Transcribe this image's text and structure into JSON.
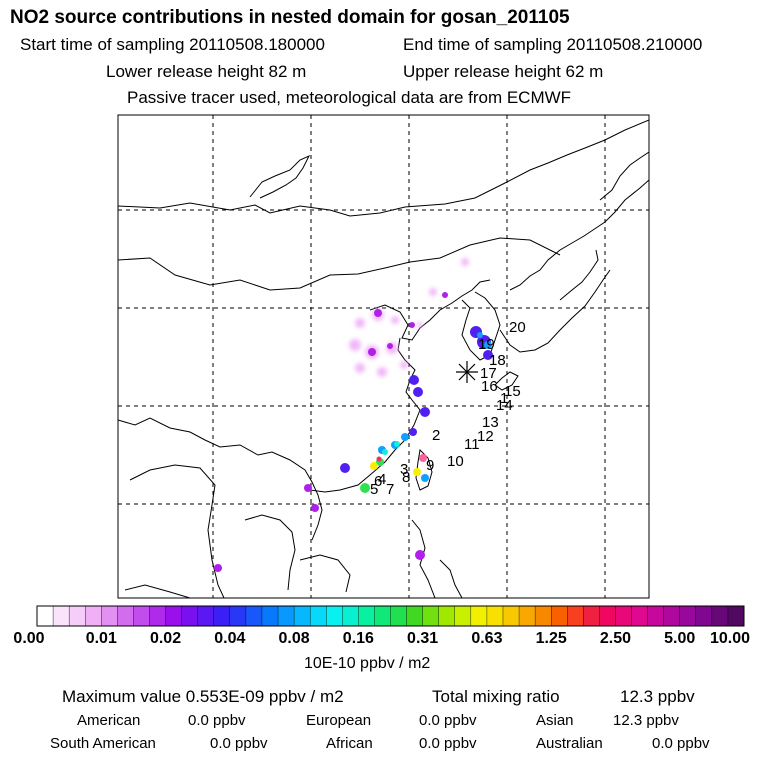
{
  "header": {
    "title": "NO2 source contributions in nested domain for gosan_201105",
    "start": "Start time of sampling 20110508.180000",
    "end": "End time of sampling 20110508.210000",
    "lower": "Lower release height   82 m",
    "upper": "Upper release height   62 m",
    "tracer": "Passive tracer used, meteorological data are from ECMWF"
  },
  "map": {
    "receptor_marker": "star-asterisk",
    "trajectory_labels": [
      "1",
      "2",
      "3",
      "4",
      "5",
      "6",
      "7",
      "8",
      "9",
      "10",
      "11",
      "12",
      "13",
      "14",
      "15",
      "16",
      "17",
      "18",
      "19",
      "20"
    ]
  },
  "colorbar": {
    "ticks": [
      "0.00",
      "0.01",
      "0.02",
      "0.04",
      "0.08",
      "0.16",
      "0.31",
      "0.63",
      "1.25",
      "2.50",
      "5.00",
      "10.00"
    ],
    "units": "10E-10 ppbv / m2"
  },
  "summary": {
    "max": "Maximum value  0.553E-09 ppbv / m2",
    "total_label": "Total mixing ratio",
    "total_value": "12.3 ppbv",
    "regions": [
      {
        "name": "American",
        "value": "0.0 ppbv"
      },
      {
        "name": "European",
        "value": "0.0 ppbv"
      },
      {
        "name": "Asian",
        "value": "12.3 ppbv"
      },
      {
        "name": "South American",
        "value": "0.0 ppbv"
      },
      {
        "name": "African",
        "value": "0.0 ppbv"
      },
      {
        "name": "Australian",
        "value": "0.0 ppbv"
      }
    ]
  }
}
